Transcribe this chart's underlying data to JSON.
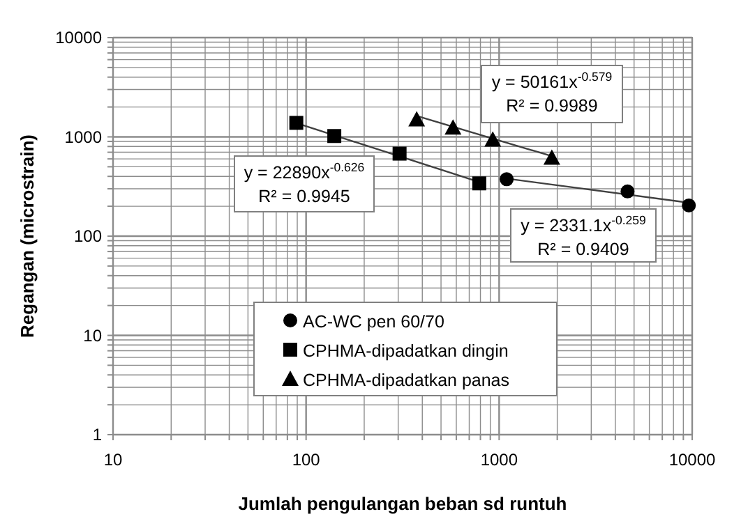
{
  "chart_data": {
    "type": "scatter",
    "xlabel": "Jumlah  pengulangan beban sd runtuh",
    "ylabel": "Regangan (microstrain)",
    "log": "xy",
    "grid": true,
    "legend": "bottom",
    "xlim": [
      10,
      10000
    ],
    "ylim": [
      1,
      10000
    ],
    "xticks": [
      10,
      {
        "value": 20,
        "label": null
      },
      {
        "value": 30,
        "label": null
      },
      {
        "value": 40,
        "label": null
      },
      {
        "value": 50,
        "label": null
      },
      {
        "value": 60,
        "label": null
      },
      {
        "value": 70,
        "label": null
      },
      {
        "value": 80,
        "label": null
      },
      {
        "value": 90,
        "label": null
      },
      100,
      {
        "value": 200,
        "label": null
      },
      {
        "value": 300,
        "label": null
      },
      {
        "value": 400,
        "label": null
      },
      {
        "value": 500,
        "label": null
      },
      {
        "value": 600,
        "label": null
      },
      {
        "value": 700,
        "label": null
      },
      {
        "value": 800,
        "label": null
      },
      {
        "value": 900,
        "label": null
      },
      1000,
      {
        "value": 2000,
        "label": null
      },
      {
        "value": 3000,
        "label": null
      },
      {
        "value": 4000,
        "label": null
      },
      {
        "value": 5000,
        "label": null
      },
      {
        "value": 6000,
        "label": null
      },
      {
        "value": 7000,
        "label": null
      },
      {
        "value": 8000,
        "label": null
      },
      {
        "value": 9000,
        "label": null
      },
      10000
    ],
    "yticks": [
      1,
      {
        "value": 2,
        "label": null
      },
      {
        "value": 3,
        "label": null
      },
      {
        "value": 4,
        "label": null
      },
      {
        "value": 5,
        "label": null
      },
      {
        "value": 6,
        "label": null
      },
      {
        "value": 7,
        "label": null
      },
      {
        "value": 8,
        "label": null
      },
      {
        "value": 9,
        "label": null
      },
      10,
      {
        "value": 20,
        "label": null
      },
      {
        "value": 30,
        "label": null
      },
      {
        "value": 40,
        "label": null
      },
      {
        "value": 50,
        "label": null
      },
      {
        "value": 60,
        "label": null
      },
      {
        "value": 70,
        "label": null
      },
      {
        "value": 80,
        "label": null
      },
      {
        "value": 90,
        "label": null
      },
      100,
      {
        "value": 200,
        "label": null
      },
      {
        "value": 300,
        "label": null
      },
      {
        "value": 400,
        "label": null
      },
      {
        "value": 500,
        "label": null
      },
      {
        "value": 600,
        "label": null
      },
      {
        "value": 700,
        "label": null
      },
      {
        "value": 800,
        "label": null
      },
      {
        "value": 900,
        "label": null
      },
      1000,
      {
        "value": 2000,
        "label": null
      },
      {
        "value": 3000,
        "label": null
      },
      {
        "value": 4000,
        "label": null
      },
      {
        "value": 5000,
        "label": null
      },
      {
        "value": 6000,
        "label": null
      },
      {
        "value": 7000,
        "label": null
      },
      {
        "value": 8000,
        "label": null
      },
      {
        "value": 9000,
        "label": null
      },
      10000
    ],
    "series": [
      {
        "type": "line",
        "color": "#404040",
        "marker": "none",
        "x": [
          1094,
          9610
        ],
        "values": [
          380,
          217
        ]
      },
      {
        "type": "line",
        "color": "#404040",
        "marker": "none",
        "x": [
          89,
          789
        ],
        "values": [
          1377,
          351
        ]
      },
      {
        "type": "line",
        "color": "#404040",
        "marker": "none",
        "x": [
          374,
          1875
        ],
        "values": [
          1625,
          639
        ]
      },
      {
        "name": "AC-WC pen 60/70",
        "color": "#000000",
        "marker": "circle",
        "x": [
          1094,
          4625,
          9610
        ],
        "values": [
          374,
          282,
          204
        ]
      },
      {
        "name": "CPHMA-dipadatkan dingin",
        "color": "#000000",
        "marker": "square",
        "x": [
          89,
          140,
          305,
          789
        ],
        "values": [
          1384,
          1020,
          678,
          340
        ]
      },
      {
        "name": "CPHMA-dipadatkan panas",
        "color": "#000000",
        "marker": "triangle",
        "x": [
          374,
          577,
          927,
          1875
        ],
        "values": [
          1500,
          1240,
          937,
          615
        ]
      }
    ],
    "annotations": [
      "y = 50161x$^{-0.579}$",
      "R² = 0.9989",
      "y = 22890x$^{-0.626}$",
      "R² = 0.9945",
      "y = 2331.1x$^{-0.259}$",
      "R² = 0.9409"
    ]
  }
}
